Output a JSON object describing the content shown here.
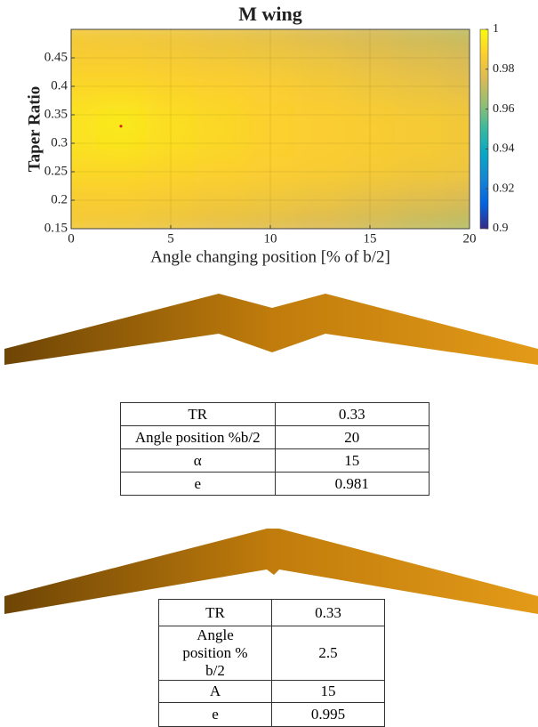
{
  "chart_data": {
    "type": "heatmap",
    "title": "M wing",
    "xlabel": "Angle changing position [% of b/2]",
    "ylabel": "Taper Ratio",
    "x": [
      0,
      2.5,
      5,
      7.5,
      10,
      12.5,
      15,
      17.5,
      20
    ],
    "y": [
      0.15,
      0.2,
      0.25,
      0.3,
      0.35,
      0.4,
      0.45,
      0.5
    ],
    "z": [
      [
        0.984,
        0.983,
        0.981,
        0.979,
        0.977,
        0.975,
        0.973,
        0.97,
        0.968
      ],
      [
        0.986,
        0.986,
        0.985,
        0.984,
        0.983,
        0.981,
        0.979,
        0.977,
        0.975
      ],
      [
        0.99,
        0.99,
        0.989,
        0.988,
        0.987,
        0.986,
        0.985,
        0.984,
        0.983
      ],
      [
        0.993,
        0.994,
        0.992,
        0.99,
        0.988,
        0.987,
        0.986,
        0.985,
        0.984
      ],
      [
        0.993,
        0.995,
        0.992,
        0.99,
        0.988,
        0.987,
        0.986,
        0.985,
        0.984
      ],
      [
        0.99,
        0.99,
        0.989,
        0.988,
        0.987,
        0.985,
        0.983,
        0.981,
        0.979
      ],
      [
        0.986,
        0.986,
        0.985,
        0.984,
        0.983,
        0.981,
        0.979,
        0.977,
        0.975
      ],
      [
        0.984,
        0.983,
        0.982,
        0.98,
        0.978,
        0.976,
        0.974,
        0.972,
        0.97
      ]
    ],
    "xlim": [
      0,
      20
    ],
    "xticks": [
      0,
      5,
      10,
      15,
      20
    ],
    "ylim": [
      0.15,
      0.5
    ],
    "yticks": [
      0.15,
      0.2,
      0.25,
      0.3,
      0.35,
      0.4,
      0.45
    ],
    "clim": [
      0.9,
      1
    ],
    "cticks": [
      0.9,
      0.92,
      0.94,
      0.96,
      0.98,
      1
    ],
    "colormap": [
      "#352a87",
      "#0363e1",
      "#1485d4",
      "#06a7c6",
      "#38b99e",
      "#92bf73",
      "#d9ba56",
      "#fcce2e",
      "#f9fb0e"
    ],
    "marker": {
      "x": 2.5,
      "y": 0.33,
      "color": "#d62728"
    }
  },
  "tables": [
    {
      "rows": [
        [
          "TR",
          "0.33"
        ],
        [
          "Angle position %b/2",
          "20"
        ],
        [
          "α",
          "15"
        ],
        [
          "e",
          "0.981"
        ]
      ]
    },
    {
      "rows": [
        [
          "TR",
          "0.33"
        ],
        [
          "Angle position % b/2",
          "2.5"
        ],
        [
          "A",
          "15"
        ],
        [
          "e",
          "0.995"
        ]
      ]
    }
  ]
}
